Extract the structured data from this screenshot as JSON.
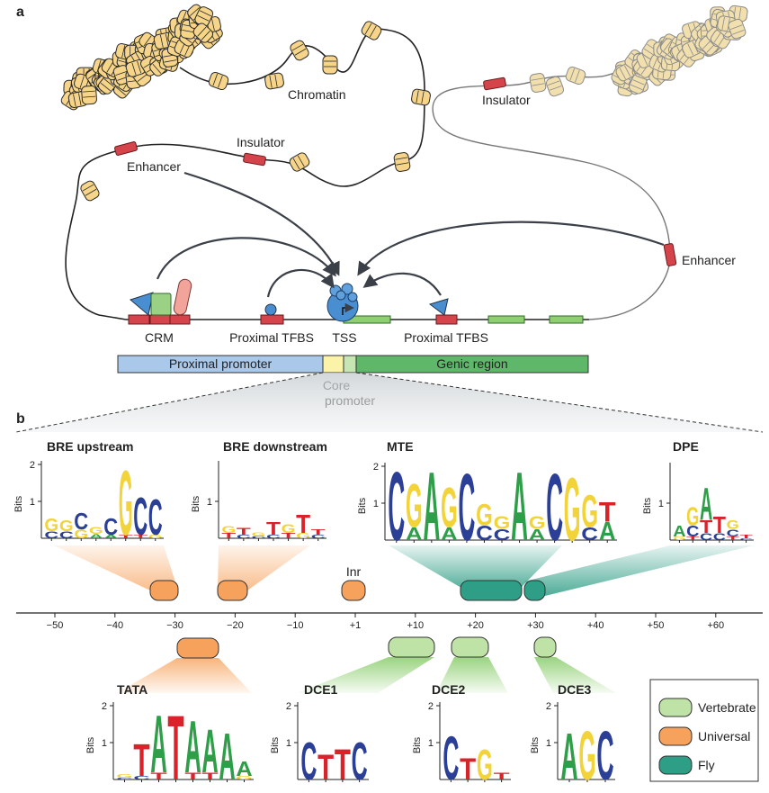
{
  "panel_a": {
    "label": "a",
    "chromatin": "Chromatin",
    "insulator_left": "Insulator",
    "insulator_right": "Insulator",
    "enhancer_left": "Enhancer",
    "enhancer_right": "Enhancer",
    "crm": "CRM",
    "proximal_tfbs_left": "Proximal TFBS",
    "tss": "TSS",
    "proximal_tfbs_right": "Proximal TFBS",
    "proximal_promoter": "Proximal promoter",
    "genic_region": "Genic region",
    "core_promoter": [
      "Core",
      "promoter"
    ]
  },
  "panel_b": {
    "label": "b",
    "inr": "Inr",
    "axis_ticks": [
      "−50",
      "−40",
      "−30",
      "−20",
      "−10",
      "+1",
      "+10",
      "+20",
      "+30",
      "+40",
      "+50",
      "+60"
    ],
    "logos": [
      {
        "title": "BRE upstream",
        "ylabel": "Bits",
        "yticks": [
          "1",
          "2"
        ],
        "columns": [
          [
            {
              "l": "G",
              "h": 0.35
            },
            {
              "l": "C",
              "h": 0.2
            }
          ],
          [
            {
              "l": "G",
              "h": 0.3
            },
            {
              "l": "C",
              "h": 0.2
            }
          ],
          [
            {
              "l": "C",
              "h": 0.45
            },
            {
              "l": "G",
              "h": 0.25
            }
          ],
          [
            {
              "l": "G",
              "h": 0.2
            },
            {
              "l": "A",
              "h": 0.12
            }
          ],
          [
            {
              "l": "C",
              "h": 0.45
            },
            {
              "l": "A",
              "h": 0.1
            }
          ],
          [
            {
              "l": "G",
              "h": 1.8
            },
            {
              "l": "T",
              "h": 0.1
            }
          ],
          [
            {
              "l": "C",
              "h": 1.05
            },
            {
              "l": "T",
              "h": 0.1
            }
          ],
          [
            {
              "l": "C",
              "h": 1.0
            },
            {
              "l": "G",
              "h": 0.1
            }
          ]
        ]
      },
      {
        "title": "BRE downstream",
        "ylabel": "Bits",
        "yticks": [
          "1"
        ],
        "columns": [
          [
            {
              "l": "G",
              "h": 0.2
            },
            {
              "l": "T",
              "h": 0.15
            }
          ],
          [
            {
              "l": "T",
              "h": 0.2
            },
            {
              "l": "C",
              "h": 0.1
            }
          ],
          [
            {
              "l": "G",
              "h": 0.1
            },
            {
              "l": "C",
              "h": 0.06
            }
          ],
          [
            {
              "l": "T",
              "h": 0.35
            },
            {
              "l": "C",
              "h": 0.1
            }
          ],
          [
            {
              "l": "G",
              "h": 0.25
            },
            {
              "l": "T",
              "h": 0.15
            }
          ],
          [
            {
              "l": "T",
              "h": 0.5
            },
            {
              "l": "G",
              "h": 0.15
            }
          ],
          [
            {
              "l": "T",
              "h": 0.15
            },
            {
              "l": "C",
              "h": 0.1
            }
          ]
        ]
      },
      {
        "title": "MTE",
        "ylabel": "Bits",
        "yticks": [
          "1",
          "2"
        ],
        "columns": [
          [
            {
              "l": "C",
              "h": 1.9
            }
          ],
          [
            {
              "l": "G",
              "h": 1.2
            },
            {
              "l": "A",
              "h": 0.35
            }
          ],
          [
            {
              "l": "A",
              "h": 1.9
            }
          ],
          [
            {
              "l": "G",
              "h": 1.1
            },
            {
              "l": "A",
              "h": 0.35
            }
          ],
          [
            {
              "l": "C",
              "h": 1.85
            }
          ],
          [
            {
              "l": "G",
              "h": 0.6
            },
            {
              "l": "C",
              "h": 0.4
            }
          ],
          [
            {
              "l": "G",
              "h": 0.35
            },
            {
              "l": "C",
              "h": 0.3
            }
          ],
          [
            {
              "l": "A",
              "h": 1.9
            }
          ],
          [
            {
              "l": "G",
              "h": 0.35
            },
            {
              "l": "A",
              "h": 0.3
            }
          ],
          [
            {
              "l": "C",
              "h": 1.85
            }
          ],
          [
            {
              "l": "G",
              "h": 1.75
            }
          ],
          [
            {
              "l": "G",
              "h": 0.9
            },
            {
              "l": "C",
              "h": 0.35
            }
          ],
          [
            {
              "l": "T",
              "h": 0.55
            },
            {
              "l": "A",
              "h": 0.5
            }
          ]
        ]
      },
      {
        "title": "DPE",
        "ylabel": "Bits",
        "yticks": [
          "1"
        ],
        "columns": [
          [
            {
              "l": "A",
              "h": 0.3
            },
            {
              "l": "G",
              "h": 0.1
            }
          ],
          [
            {
              "l": "G",
              "h": 0.5
            },
            {
              "l": "C",
              "h": 0.3
            },
            {
              "l": "T",
              "h": 0.1
            }
          ],
          [
            {
              "l": "A",
              "h": 0.9
            },
            {
              "l": "T",
              "h": 0.35
            },
            {
              "l": "C",
              "h": 0.2
            }
          ],
          [
            {
              "l": "T",
              "h": 0.45
            },
            {
              "l": "C",
              "h": 0.2
            }
          ],
          [
            {
              "l": "G",
              "h": 0.25
            },
            {
              "l": "C",
              "h": 0.2
            },
            {
              "l": "T",
              "h": 0.1
            }
          ],
          [
            {
              "l": "T",
              "h": 0.1
            },
            {
              "l": "C",
              "h": 0.05
            }
          ]
        ]
      },
      {
        "title": "TATA",
        "ylabel": "Bits",
        "yticks": [
          "1",
          "2"
        ],
        "columns": [
          [
            {
              "l": "G",
              "h": 0.1
            },
            {
              "l": "C",
              "h": 0.05
            }
          ],
          [
            {
              "l": "T",
              "h": 0.9
            },
            {
              "l": "C",
              "h": 0.1
            }
          ],
          [
            {
              "l": "A",
              "h": 1.6
            },
            {
              "l": "T",
              "h": 0.2
            }
          ],
          [
            {
              "l": "T",
              "h": 1.8
            }
          ],
          [
            {
              "l": "A",
              "h": 1.45
            },
            {
              "l": "T",
              "h": 0.2
            }
          ],
          [
            {
              "l": "A",
              "h": 1.2
            },
            {
              "l": "T",
              "h": 0.2
            }
          ],
          [
            {
              "l": "A",
              "h": 1.3
            }
          ],
          [
            {
              "l": "A",
              "h": 0.4
            },
            {
              "l": "G",
              "h": 0.1
            }
          ]
        ]
      },
      {
        "title": "DCE1",
        "ylabel": "Bits",
        "yticks": [
          "1",
          "2"
        ],
        "columns": [
          [
            {
              "l": "C",
              "h": 1.05
            }
          ],
          [
            {
              "l": "T",
              "h": 0.7
            }
          ],
          [
            {
              "l": "T",
              "h": 0.85
            }
          ],
          [
            {
              "l": "C",
              "h": 1.05
            }
          ]
        ]
      },
      {
        "title": "DCE2",
        "ylabel": "Bits",
        "yticks": [
          "1",
          "2"
        ],
        "columns": [
          [
            {
              "l": "C",
              "h": 1.2
            }
          ],
          [
            {
              "l": "T",
              "h": 0.6
            }
          ],
          [
            {
              "l": "G",
              "h": 0.85
            }
          ],
          [
            {
              "l": "T",
              "h": 0.2
            }
          ]
        ]
      },
      {
        "title": "DCE3",
        "ylabel": "Bits",
        "yticks": [
          "1",
          "2"
        ],
        "columns": [
          [
            {
              "l": "A",
              "h": 1.3
            }
          ],
          [
            {
              "l": "G",
              "h": 1.35
            }
          ],
          [
            {
              "l": "C",
              "h": 1.35
            }
          ]
        ]
      }
    ],
    "legend": [
      {
        "label": "Vertebrate",
        "color": "#bfe3a6"
      },
      {
        "label": "Universal",
        "color": "#f6a25c"
      },
      {
        "label": "Fly",
        "color": "#2f9e86"
      }
    ]
  }
}
